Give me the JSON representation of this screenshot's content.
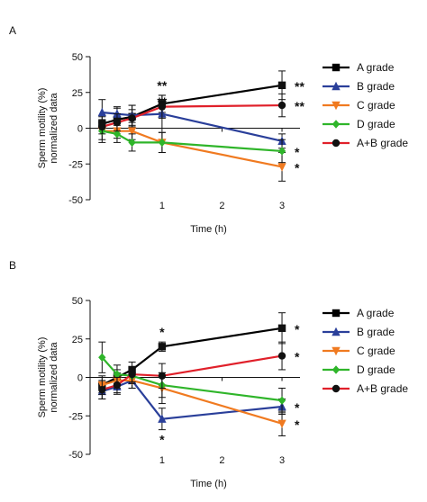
{
  "chart_data": [
    {
      "panel_label": "A",
      "type": "line",
      "xlabel": "Time (h)",
      "ylabel": "Sperm motility (%)",
      "ylabel2": "normalized data",
      "ylim": [
        -50,
        50
      ],
      "yticks": [
        -50,
        -25,
        0,
        25,
        50
      ],
      "xlim": [
        -0.2,
        3.3
      ],
      "xticks": [
        1,
        2,
        3
      ],
      "legend_position": "right",
      "series": [
        {
          "name": "A grade",
          "color": "#000000",
          "marker": "square",
          "x": [
            0,
            0.25,
            0.5,
            1,
            3
          ],
          "values": [
            3,
            6,
            8,
            17,
            30
          ],
          "err": [
            5,
            8,
            8,
            6,
            10
          ],
          "sig": [
            null,
            null,
            null,
            "**",
            "**"
          ]
        },
        {
          "name": "B grade",
          "color": "#2a3f9a",
          "marker": "triangle-up",
          "x": [
            0,
            0.25,
            0.5,
            1,
            3
          ],
          "values": [
            11,
            10,
            9,
            10,
            -9
          ],
          "err": [
            9,
            5,
            7,
            10,
            5
          ],
          "sig": [
            null,
            null,
            null,
            null,
            null
          ]
        },
        {
          "name": "C grade",
          "color": "#f07a20",
          "marker": "triangle-down",
          "x": [
            0,
            0.25,
            0.5,
            1,
            3
          ],
          "values": [
            -2,
            -2,
            -2,
            -10,
            -27
          ],
          "err": [
            6,
            5,
            6,
            7,
            10
          ],
          "sig": [
            null,
            null,
            null,
            null,
            "*"
          ]
        },
        {
          "name": "D grade",
          "color": "#2fb52a",
          "marker": "diamond",
          "x": [
            0,
            0.25,
            0.5,
            1,
            3
          ],
          "values": [
            -2,
            -4,
            -10,
            -10,
            -16
          ],
          "err": [
            8,
            6,
            6,
            7,
            8
          ],
          "sig": [
            null,
            null,
            null,
            null,
            "*"
          ]
        },
        {
          "name": "A+B grade",
          "color": "#e0202a",
          "marker": "circle",
          "x": [
            0,
            0.25,
            0.5,
            1,
            3
          ],
          "values": [
            1,
            4,
            7,
            15,
            16
          ],
          "err": [
            5,
            6,
            6,
            8,
            8
          ],
          "sig": [
            null,
            null,
            null,
            "**",
            "**"
          ]
        }
      ]
    },
    {
      "panel_label": "B",
      "type": "line",
      "xlabel": "Time (h)",
      "ylabel": "Sperm motility (%)",
      "ylabel2": "normalized data",
      "ylim": [
        -50,
        50
      ],
      "yticks": [
        -50,
        -25,
        0,
        25,
        50
      ],
      "xlim": [
        -0.2,
        3.3
      ],
      "xticks": [
        1,
        2,
        3
      ],
      "legend_position": "right",
      "series": [
        {
          "name": "A grade",
          "color": "#000000",
          "marker": "square",
          "x": [
            0,
            0.25,
            0.5,
            1,
            3
          ],
          "values": [
            -5,
            0,
            5,
            20,
            32
          ],
          "err": [
            5,
            5,
            5,
            3,
            10
          ],
          "sig": [
            null,
            null,
            null,
            "*",
            "*"
          ]
        },
        {
          "name": "B grade",
          "color": "#2a3f9a",
          "marker": "triangle-up",
          "x": [
            0,
            0.25,
            0.5,
            1,
            3
          ],
          "values": [
            -9,
            -6,
            -2,
            -27,
            -19
          ],
          "err": [
            5,
            5,
            5,
            7,
            5
          ],
          "sig": [
            null,
            null,
            null,
            "*",
            "*"
          ]
        },
        {
          "name": "C grade",
          "color": "#f07a20",
          "marker": "triangle-down",
          "x": [
            0,
            0.25,
            0.5,
            1,
            3
          ],
          "values": [
            -5,
            -2,
            -2,
            -7,
            -30
          ],
          "err": [
            6,
            5,
            5,
            10,
            8
          ],
          "sig": [
            null,
            null,
            null,
            null,
            "*"
          ]
        },
        {
          "name": "D grade",
          "color": "#2fb52a",
          "marker": "diamond",
          "x": [
            0,
            0.25,
            0.5,
            1,
            3
          ],
          "values": [
            13,
            2,
            1,
            -5,
            -15
          ],
          "err": [
            10,
            6,
            5,
            8,
            8
          ],
          "sig": [
            null,
            null,
            null,
            null,
            null
          ]
        },
        {
          "name": "A+B grade",
          "color": "#e0202a",
          "marker": "circle",
          "x": [
            0,
            0.25,
            0.5,
            1,
            3
          ],
          "values": [
            -8,
            -5,
            2,
            1,
            14
          ],
          "err": [
            6,
            5,
            5,
            8,
            9
          ],
          "sig": [
            null,
            null,
            null,
            null,
            "*"
          ]
        }
      ]
    }
  ]
}
